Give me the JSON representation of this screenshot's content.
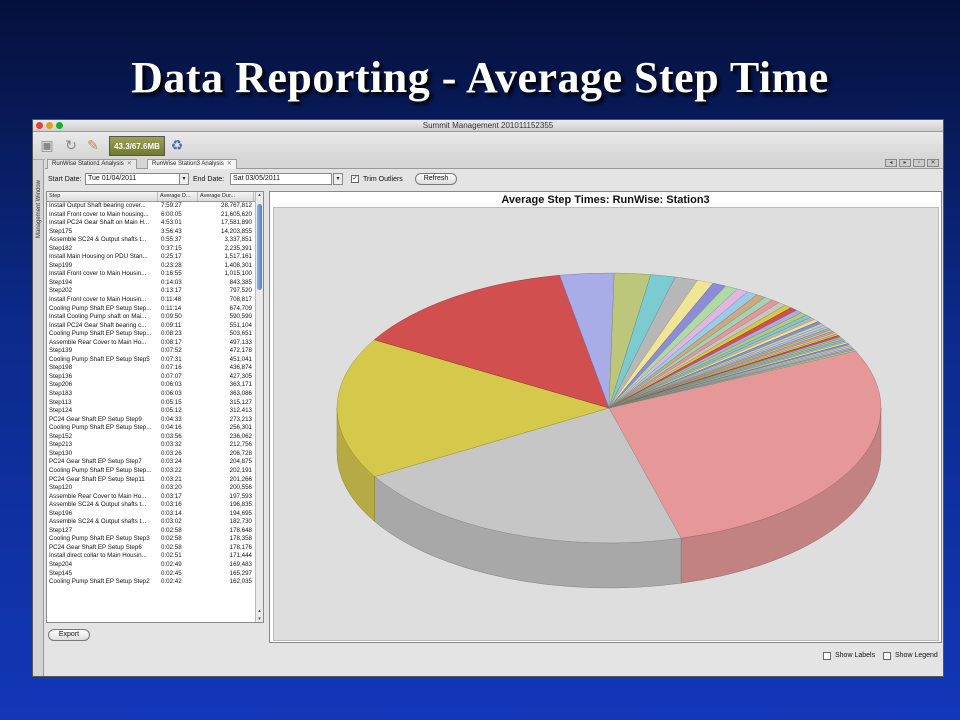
{
  "slide": {
    "title": "Data Reporting - Average Step Time"
  },
  "window": {
    "title": "Summit Management 201011152355",
    "memory": "43.3/67.6MB"
  },
  "sidebar": {
    "label": "Management Window"
  },
  "tabs": [
    {
      "label": "RunWise Station1 Analysis"
    },
    {
      "label": "RunWise Station3 Analysis"
    }
  ],
  "filter": {
    "start_label": "Start Date:",
    "start_value": "Tue 01/04/2011",
    "end_label": "End Date:",
    "end_value": "Sat 03/05/2011",
    "trim_label": "Trim Outliers",
    "trim_checked": true,
    "refresh_label": "Refresh"
  },
  "table": {
    "headers": [
      "Step",
      "Average D...",
      "Average Dur..."
    ],
    "rows": [
      [
        "Install Output Shaft bearing cover...",
        "7:59:27",
        "28,767,812"
      ],
      [
        "Install Front cover to Main housing...",
        "6:00:05",
        "21,605,620"
      ],
      [
        "Install PC24 Gear Shaft on Main H...",
        "4:53:01",
        "17,581,890"
      ],
      [
        "Step175",
        "3:56:43",
        "14,203,855"
      ],
      [
        "Assemble SC24 & Output shafts t...",
        "0:55:37",
        "3,337,851"
      ],
      [
        "Step182",
        "0:37:15",
        "2,235,391"
      ],
      [
        "Install Main Housing on PDU Stan...",
        "0:25:17",
        "1,517,161"
      ],
      [
        "Step199",
        "0:23:28",
        "1,408,301"
      ],
      [
        "Install Front cover to Main Housin...",
        "0:16:55",
        "1,015,100"
      ],
      [
        "Step194",
        "0:14:03",
        "843,385"
      ],
      [
        "Step202",
        "0:13:17",
        "797,520"
      ],
      [
        "Install Front cover to Main Housin...",
        "0:11:48",
        "708,817"
      ],
      [
        "Cooling Pump Shaft EP Setup Step...",
        "0:11:14",
        "674,709"
      ],
      [
        "Install Cooling Pump shaft on Mai...",
        "0:09:50",
        "590,590"
      ],
      [
        "Install PC24 Gear Shaft bearing c...",
        "0:09:11",
        "551,104"
      ],
      [
        "Cooling Pump Shaft EP Setup Step...",
        "0:08:23",
        "503,651"
      ],
      [
        "Assemble Rear Cover to Main Ho...",
        "0:08:17",
        "497,133"
      ],
      [
        "Step139",
        "0:07:52",
        "472,178"
      ],
      [
        "Cooling Pump Shaft EP Setup Step5",
        "0:07:31",
        "451,041"
      ],
      [
        "Step198",
        "0:07:16",
        "436,874"
      ],
      [
        "Step136",
        "0:07:07",
        "427,305"
      ],
      [
        "Step206",
        "0:06:03",
        "363,171"
      ],
      [
        "Step183",
        "0:06:03",
        "363,086"
      ],
      [
        "Step113",
        "0:05:15",
        "315,127"
      ],
      [
        "Step124",
        "0:05:12",
        "312,413"
      ],
      [
        "PC24 Gear Shaft EP Setup Step9",
        "0:04:33",
        "273,213"
      ],
      [
        "Cooling Pump Shaft EP Setup Step...",
        "0:04:16",
        "256,301"
      ],
      [
        "Step152",
        "0:03:56",
        "236,062"
      ],
      [
        "Step213",
        "0:03:32",
        "212,756"
      ],
      [
        "Step130",
        "0:03:26",
        "206,728"
      ],
      [
        "PC24 Gear Shaft EP Setup Step7",
        "0:03:24",
        "204,875"
      ],
      [
        "Cooling Pump Shaft EP Setup Step...",
        "0:03:22",
        "202,191"
      ],
      [
        "PC24 Gear Shaft EP Setup Step11",
        "0:03:21",
        "201,266"
      ],
      [
        "Step120",
        "0:03:20",
        "200,556"
      ],
      [
        "Assemble Rear Cover to Main Ho...",
        "0:03:17",
        "197,593"
      ],
      [
        "Assemble SC24 & Output shafts t...",
        "0:03:16",
        "196,835"
      ],
      [
        "Step196",
        "0:03:14",
        "194,695"
      ],
      [
        "Assemble SC24 & Output shafts t...",
        "0:03:02",
        "182,730"
      ],
      [
        "Step127",
        "0:02:58",
        "178,648"
      ],
      [
        "Cooling Pump Shaft EP Setup Step3",
        "0:02:58",
        "178,358"
      ],
      [
        "PC24 Gear Shaft EP Setup Step6",
        "0:02:58",
        "178,176"
      ],
      [
        "Install direct collar to Main Housin...",
        "0:02:51",
        "171,444"
      ],
      [
        "Step204",
        "0:02:49",
        "169,483"
      ],
      [
        "Step145",
        "0:02:45",
        "165,297"
      ],
      [
        "Cooling Pump Shaft EP Setup Step2",
        "0:02:42",
        "162,035"
      ]
    ],
    "export_label": "Export"
  },
  "chart_data": {
    "type": "pie",
    "title": "Average Step Times: RunWise: Station3",
    "labels": [
      "Install Output Shaft bearing cover...",
      "Install Front cover to Main housing...",
      "Install PC24 Gear Shaft on Main H...",
      "Step175",
      "Assemble SC24 & Output shafts t...",
      "Step182",
      "Install Main Housing on PDU Stan...",
      "Step199",
      "Install Front cover to Main Housin...",
      "Step194",
      "Step202",
      "Install Front cover to Main Housin...",
      "Cooling Pump Shaft EP Setup Step...",
      "Install Cooling Pump shaft on Mai...",
      "Install PC24 Gear Shaft bearing c...",
      "Cooling Pump Shaft EP Setup Step...",
      "Assemble Rear Cover to Main Ho...",
      "Step139",
      "Cooling Pump Shaft EP Setup Step5",
      "Step198",
      "Step136",
      "Step206",
      "Step183",
      "Step113",
      "Step124",
      "PC24 Gear Shaft EP Setup Step9",
      "Cooling Pump Shaft EP Setup Step...",
      "Step152",
      "Step213",
      "Step130",
      "PC24 Gear Shaft EP Setup Step7",
      "Cooling Pump Shaft EP Setup Step...",
      "PC24 Gear Shaft EP Setup Step11",
      "Step120",
      "Assemble Rear Cover to Main Ho...",
      "Assemble SC24 & Output shafts t...",
      "Step196",
      "Assemble SC24 & Output shafts t...",
      "Step127",
      "Cooling Pump Shaft EP Setup Step3",
      "PC24 Gear Shaft EP Setup Step6",
      "Install direct collar to Main Housin...",
      "Step204",
      "Step145",
      "Cooling Pump Shaft EP Setup Step2"
    ],
    "values": [
      28767812,
      21605620,
      17581890,
      14203855,
      3337851,
      2235391,
      1517161,
      1408301,
      1015100,
      843385,
      797520,
      708817,
      674709,
      590590,
      551104,
      503651,
      497133,
      472178,
      451041,
      436874,
      427305,
      363171,
      363086,
      315127,
      312413,
      273213,
      256301,
      236062,
      212756,
      206728,
      204875,
      202191,
      201266,
      200556,
      197593,
      196835,
      194695,
      182730,
      178648,
      178358,
      178176,
      171444,
      169483,
      165297,
      162035
    ],
    "colors": [
      "#e88c8c",
      "#c2c2c2",
      "#d4c631",
      "#d03636",
      "#9fa4ea",
      "#b7c36a",
      "#6bc8cf",
      "#b0b0b0",
      "#f3e68b",
      "#7e7ed8",
      "#a6d99a",
      "#e0b0e0",
      "#8fc8e8",
      "#caa070",
      "#9ad0b0"
    ],
    "legend": false,
    "labels_shown": false
  },
  "options": {
    "show_labels": "Show Labels",
    "show_legend": "Show Legend"
  }
}
